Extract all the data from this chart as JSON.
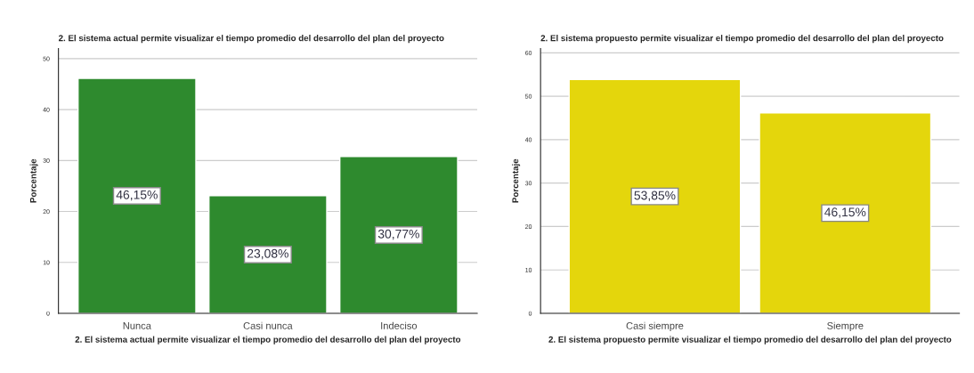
{
  "chart_data": [
    {
      "type": "bar",
      "title": "2. El sistema actual permite visualizar el tiempo promedio del desarrollo del plan del proyecto",
      "xlabel": "2. El sistema actual permite visualizar el tiempo promedio del desarrollo del plan del proyecto",
      "ylabel": "Porcentaje",
      "categories": [
        "Nunca",
        "Casi nunca",
        "Indeciso"
      ],
      "values": [
        46.15,
        23.08,
        30.77
      ],
      "color": "#2e8a2e",
      "value_labels": [
        "46,15%",
        "23,08%",
        "30,77%"
      ],
      "ylim": [
        0,
        52
      ],
      "yticks": [
        0,
        10,
        20,
        30,
        40,
        50
      ],
      "grid": "y"
    },
    {
      "type": "bar",
      "title": "2. El sistema propuesto permite visualizar el tiempo promedio del desarrollo del plan del proyecto",
      "xlabel": "2. El sistema propuesto permite visualizar el tiempo promedio del desarrollo del plan del proyecto",
      "ylabel": "Porcentaje",
      "categories": [
        "Casi siempre",
        "Siempre"
      ],
      "values": [
        53.85,
        46.15
      ],
      "color": "#e4d60c",
      "value_labels": [
        "53,85%",
        "46,15%"
      ],
      "ylim": [
        0,
        61
      ],
      "yticks": [
        0,
        10,
        20,
        30,
        40,
        50,
        60
      ],
      "grid": "y"
    }
  ]
}
